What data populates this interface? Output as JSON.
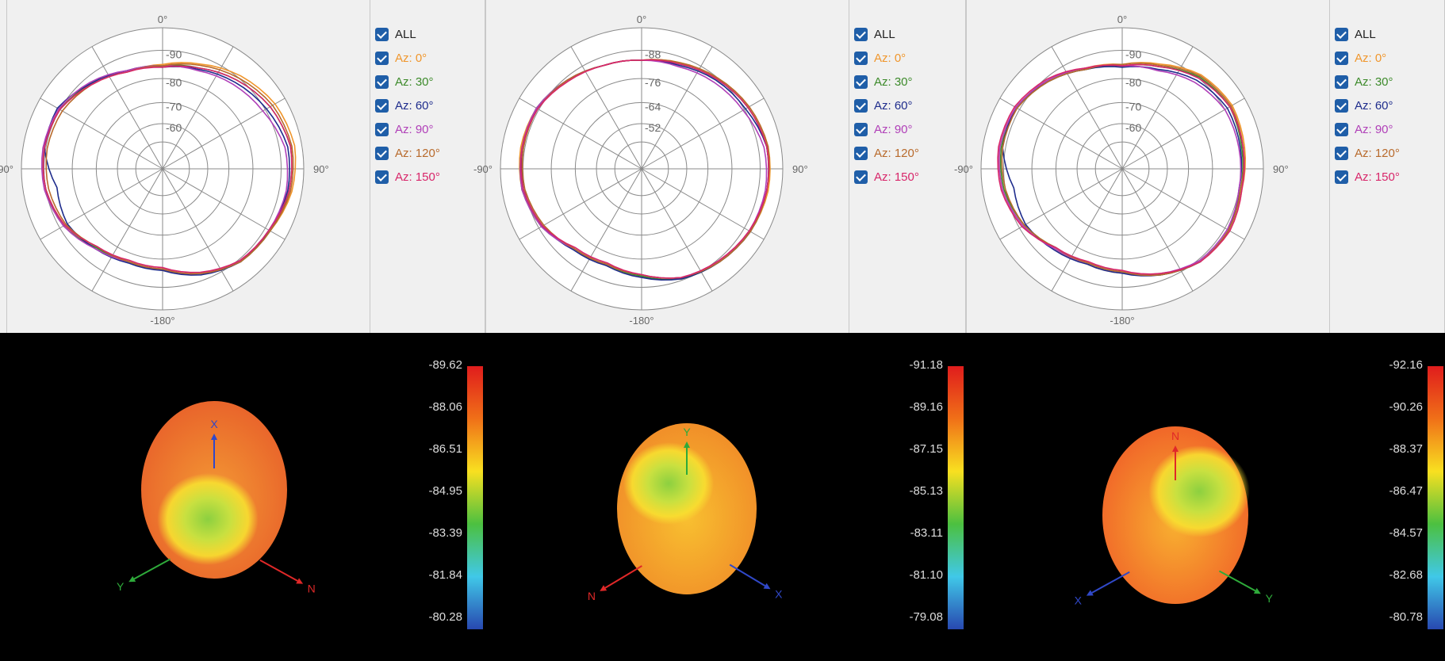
{
  "chart_data": [
    {
      "type": "polar",
      "angle_labels": [
        "0°",
        "90°",
        "-180°",
        "-90°"
      ],
      "radial_ticks": [
        "-90",
        "-80",
        "-70",
        "-60"
      ],
      "legend": [
        "ALL",
        "Az: 0°",
        "Az: 30°",
        "Az: 60°",
        "Az: 90°",
        "Az: 120°",
        "Az: 150°"
      ],
      "series": [
        {
          "name": "Az: 0°",
          "color": "#f0962c",
          "r": [
            0.74,
            0.79,
            0.86,
            0.92,
            0.95,
            0.93,
            0.88,
            0.86,
            0.79,
            0.72,
            0.7,
            0.72,
            0.8,
            0.84,
            0.86,
            0.84,
            0.78,
            0.73
          ]
        },
        {
          "name": "Az: 30°",
          "color": "#3c8a2a",
          "r": [
            0.73,
            0.76,
            0.82,
            0.88,
            0.92,
            0.91,
            0.88,
            0.86,
            0.79,
            0.71,
            0.7,
            0.73,
            0.81,
            0.84,
            0.85,
            0.84,
            0.79,
            0.74
          ]
        },
        {
          "name": "Az: 60°",
          "color": "#1e2c8c",
          "r": [
            0.72,
            0.75,
            0.8,
            0.85,
            0.9,
            0.9,
            0.87,
            0.86,
            0.8,
            0.72,
            0.71,
            0.74,
            0.78,
            0.76,
            0.85,
            0.86,
            0.79,
            0.74
          ]
        },
        {
          "name": "Az: 90°",
          "color": "#b040b8",
          "r": [
            0.73,
            0.74,
            0.78,
            0.82,
            0.88,
            0.89,
            0.87,
            0.85,
            0.79,
            0.71,
            0.7,
            0.74,
            0.81,
            0.85,
            0.86,
            0.85,
            0.8,
            0.74
          ]
        },
        {
          "name": "Az: 120°",
          "color": "#b86a2c",
          "r": [
            0.73,
            0.78,
            0.84,
            0.9,
            0.93,
            0.92,
            0.88,
            0.86,
            0.79,
            0.71,
            0.7,
            0.72,
            0.79,
            0.82,
            0.83,
            0.82,
            0.78,
            0.73
          ]
        },
        {
          "name": "Az: 150°",
          "color": "#d8266a",
          "r": [
            0.72,
            0.76,
            0.82,
            0.88,
            0.92,
            0.91,
            0.87,
            0.85,
            0.78,
            0.7,
            0.69,
            0.72,
            0.8,
            0.84,
            0.85,
            0.84,
            0.78,
            0.73
          ]
        }
      ]
    },
    {
      "type": "polar",
      "angle_labels": [
        "0°",
        "90°",
        "-180°",
        "-90°"
      ],
      "radial_ticks": [
        "-88",
        "-76",
        "-64",
        "-52"
      ],
      "legend": [
        "ALL",
        "Az: 0°",
        "Az: 30°",
        "Az: 60°",
        "Az: 90°",
        "Az: 120°",
        "Az: 150°"
      ],
      "series": [
        {
          "name": "Az: 0°",
          "color": "#f0962c",
          "r": [
            0.77,
            0.8,
            0.84,
            0.88,
            0.91,
            0.91,
            0.89,
            0.86,
            0.83,
            0.76,
            0.73,
            0.74,
            0.81,
            0.86,
            0.87,
            0.86,
            0.82,
            0.78
          ]
        },
        {
          "name": "Az: 30°",
          "color": "#3c8a2a",
          "r": [
            0.77,
            0.79,
            0.83,
            0.87,
            0.9,
            0.9,
            0.89,
            0.86,
            0.83,
            0.76,
            0.72,
            0.74,
            0.82,
            0.86,
            0.86,
            0.86,
            0.82,
            0.78
          ]
        },
        {
          "name": "Az: 60°",
          "color": "#1e2c8c",
          "r": [
            0.77,
            0.78,
            0.82,
            0.85,
            0.9,
            0.9,
            0.89,
            0.86,
            0.83,
            0.77,
            0.73,
            0.75,
            0.81,
            0.85,
            0.85,
            0.86,
            0.82,
            0.78
          ]
        },
        {
          "name": "Az: 90°",
          "color": "#b040b8",
          "r": [
            0.77,
            0.77,
            0.8,
            0.83,
            0.88,
            0.89,
            0.88,
            0.85,
            0.82,
            0.75,
            0.72,
            0.74,
            0.82,
            0.86,
            0.86,
            0.86,
            0.82,
            0.78
          ]
        },
        {
          "name": "Az: 120°",
          "color": "#b86a2c",
          "r": [
            0.77,
            0.8,
            0.84,
            0.88,
            0.91,
            0.9,
            0.89,
            0.86,
            0.82,
            0.75,
            0.72,
            0.74,
            0.8,
            0.84,
            0.85,
            0.85,
            0.82,
            0.78
          ]
        },
        {
          "name": "Az: 150°",
          "color": "#d8266a",
          "r": [
            0.77,
            0.79,
            0.83,
            0.87,
            0.9,
            0.9,
            0.88,
            0.85,
            0.82,
            0.75,
            0.71,
            0.73,
            0.81,
            0.85,
            0.86,
            0.85,
            0.81,
            0.78
          ]
        }
      ]
    },
    {
      "type": "polar",
      "angle_labels": [
        "0°",
        "90°",
        "-180°",
        "-90°"
      ],
      "radial_ticks": [
        "-90",
        "-80",
        "-70",
        "-60"
      ],
      "legend": [
        "ALL",
        "Az: 0°",
        "Az: 30°",
        "Az: 60°",
        "Az: 90°",
        "Az: 120°",
        "Az: 150°"
      ],
      "series": [
        {
          "name": "Az: 0°",
          "color": "#f0962c",
          "r": [
            0.74,
            0.79,
            0.87,
            0.9,
            0.88,
            0.86,
            0.88,
            0.86,
            0.79,
            0.74,
            0.72,
            0.74,
            0.81,
            0.86,
            0.88,
            0.87,
            0.82,
            0.76
          ]
        },
        {
          "name": "Az: 30°",
          "color": "#3c8a2a",
          "r": [
            0.73,
            0.77,
            0.85,
            0.88,
            0.86,
            0.85,
            0.87,
            0.86,
            0.8,
            0.73,
            0.71,
            0.73,
            0.8,
            0.85,
            0.87,
            0.86,
            0.81,
            0.75
          ]
        },
        {
          "name": "Az: 60°",
          "color": "#1e2c8c",
          "r": [
            0.72,
            0.75,
            0.82,
            0.86,
            0.85,
            0.84,
            0.87,
            0.86,
            0.8,
            0.74,
            0.72,
            0.75,
            0.79,
            0.78,
            0.86,
            0.87,
            0.81,
            0.75
          ]
        },
        {
          "name": "Az: 90°",
          "color": "#b040b8",
          "r": [
            0.73,
            0.74,
            0.8,
            0.84,
            0.84,
            0.84,
            0.86,
            0.85,
            0.79,
            0.73,
            0.71,
            0.74,
            0.81,
            0.86,
            0.88,
            0.87,
            0.82,
            0.76
          ]
        },
        {
          "name": "Az: 120°",
          "color": "#b86a2c",
          "r": [
            0.74,
            0.78,
            0.86,
            0.89,
            0.87,
            0.85,
            0.87,
            0.86,
            0.8,
            0.73,
            0.71,
            0.73,
            0.8,
            0.84,
            0.86,
            0.86,
            0.81,
            0.75
          ]
        },
        {
          "name": "Az: 150°",
          "color": "#d8266a",
          "r": [
            0.73,
            0.77,
            0.84,
            0.88,
            0.87,
            0.86,
            0.88,
            0.86,
            0.79,
            0.72,
            0.7,
            0.73,
            0.82,
            0.87,
            0.89,
            0.88,
            0.83,
            0.76
          ]
        }
      ]
    },
    {
      "type": "heatmap",
      "colorbar_labels": [
        "-89.62",
        "-88.06",
        "-86.51",
        "-84.95",
        "-83.39",
        "-81.84",
        "-80.28"
      ],
      "axes": [
        "X",
        "Y",
        "N"
      ],
      "axis_colors": {
        "X": "#3048c8",
        "Y": "#2eaa3a",
        "N": "#e02828"
      }
    },
    {
      "type": "heatmap",
      "colorbar_labels": [
        "-91.18",
        "-89.16",
        "-87.15",
        "-85.13",
        "-83.11",
        "-81.10",
        "-79.08"
      ],
      "axes": [
        "Y",
        "N",
        "X"
      ],
      "axis_colors": {
        "Y": "#2eaa3a",
        "N": "#e02828",
        "X": "#3048c8"
      }
    },
    {
      "type": "heatmap",
      "colorbar_labels": [
        "-92.16",
        "-90.26",
        "-88.37",
        "-86.47",
        "-84.57",
        "-82.68",
        "-80.78"
      ],
      "axes": [
        "N",
        "X",
        "Y"
      ],
      "axis_colors": {
        "N": "#e02828",
        "X": "#3048c8",
        "Y": "#2eaa3a"
      }
    }
  ],
  "colors": {
    "legend_all": "#222222",
    "checkbox": "#1f5ea8",
    "colorbar": [
      "#e01c1c",
      "#f07018",
      "#f8e020",
      "#4cc040",
      "#40c8e8",
      "#2848b0"
    ]
  }
}
